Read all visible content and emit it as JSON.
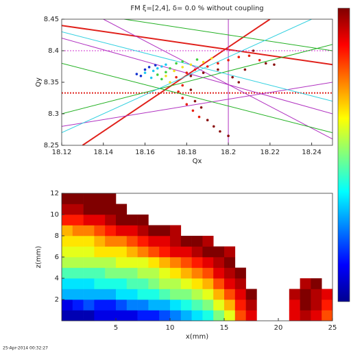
{
  "chart_data": [
    {
      "type": "scatter",
      "title": "FM ξ=[2,4], δ= 0.0 % without coupling",
      "xlabel": "Qx",
      "ylabel": "Qy",
      "xlim": [
        18.12,
        18.25
      ],
      "xticks": [
        18.12,
        18.14,
        18.16,
        18.18,
        18.2,
        18.22,
        18.24
      ],
      "ylim": [
        8.25,
        8.45
      ],
      "yticks": [
        8.25,
        8.3,
        8.35,
        8.4,
        8.45
      ],
      "lines": [
        {
          "color": "#e0201a",
          "dash": false,
          "x": [
            18.12,
            18.25
          ],
          "y": [
            8.44,
            8.378
          ]
        },
        {
          "color": "#e0201a",
          "dash": false,
          "x": [
            18.13,
            18.22
          ],
          "y": [
            8.25,
            8.45
          ]
        },
        {
          "color": "#e0201a",
          "dash": true,
          "x": [
            18.12,
            18.25
          ],
          "y": [
            8.333,
            8.333
          ]
        },
        {
          "color": "#d030d0",
          "dash": true,
          "x": [
            18.12,
            18.25
          ],
          "y": [
            8.4,
            8.4
          ]
        },
        {
          "color": "#b030c0",
          "dash": false,
          "x": [
            18.2,
            18.2
          ],
          "y": [
            8.25,
            8.45
          ]
        },
        {
          "color": "#b030c0",
          "dash": false,
          "x": [
            18.12,
            18.25
          ],
          "y": [
            8.28,
            8.35
          ]
        },
        {
          "color": "#b030c0",
          "dash": false,
          "x": [
            18.12,
            18.25
          ],
          "y": [
            8.42,
            8.3
          ]
        },
        {
          "color": "#b030c0",
          "dash": false,
          "x": [
            18.14,
            18.25
          ],
          "y": [
            8.45,
            8.26
          ]
        },
        {
          "color": "#20b020",
          "dash": false,
          "x": [
            18.12,
            18.25
          ],
          "y": [
            8.38,
            8.27
          ]
        },
        {
          "color": "#20b020",
          "dash": false,
          "x": [
            18.12,
            18.25
          ],
          "y": [
            8.3,
            8.41
          ]
        },
        {
          "color": "#20b020",
          "dash": false,
          "x": [
            18.15,
            18.25
          ],
          "y": [
            8.45,
            8.4
          ]
        },
        {
          "color": "#30d0e0",
          "dash": false,
          "x": [
            18.12,
            18.25
          ],
          "y": [
            8.43,
            8.32
          ]
        },
        {
          "color": "#30d0e0",
          "dash": false,
          "x": [
            18.12,
            18.24
          ],
          "y": [
            8.27,
            8.45
          ]
        }
      ],
      "groups": [
        {
          "color": "#1030d0",
          "x": [
            18.156,
            18.158,
            18.16,
            18.162,
            18.165
          ],
          "y": [
            8.363,
            8.36,
            8.37,
            8.374,
            8.377
          ]
        },
        {
          "color": "#20c8f0",
          "x": [
            18.16,
            18.164,
            18.166,
            18.168,
            18.17,
            18.163
          ],
          "y": [
            8.365,
            8.368,
            8.372,
            8.375,
            8.378,
            8.357
          ]
        },
        {
          "color": "#40d040",
          "x": [
            18.166,
            18.17,
            18.172,
            18.175,
            18.178,
            18.168,
            18.185
          ],
          "y": [
            8.362,
            8.366,
            8.372,
            8.38,
            8.383,
            8.355,
            8.386
          ]
        },
        {
          "color": "#f0e020",
          "x": [
            18.17,
            18.174,
            18.178,
            18.182,
            18.188,
            18.172,
            18.192
          ],
          "y": [
            8.36,
            8.368,
            8.374,
            8.378,
            8.382,
            8.35,
            8.388
          ]
        },
        {
          "color": "#e82010",
          "x": [
            18.175,
            18.18,
            18.184,
            18.19,
            18.195,
            18.178,
            18.176,
            18.178,
            18.18,
            18.183,
            18.186,
            18.2,
            18.205,
            18.21,
            18.215
          ],
          "y": [
            8.358,
            8.365,
            8.37,
            8.375,
            8.38,
            8.345,
            8.335,
            8.325,
            8.315,
            8.305,
            8.295,
            8.385,
            8.39,
            8.392,
            8.385
          ]
        },
        {
          "color": "#8a1010",
          "x": [
            18.182,
            18.188,
            18.195,
            18.182,
            18.184,
            18.187,
            18.19,
            18.193,
            18.196,
            18.2,
            18.202,
            18.208,
            18.212,
            18.218,
            18.222,
            18.205
          ],
          "y": [
            8.36,
            8.365,
            8.37,
            8.338,
            8.32,
            8.31,
            8.29,
            8.28,
            8.272,
            8.265,
            8.358,
            8.37,
            8.4,
            8.38,
            8.378,
            8.35
          ]
        }
      ]
    },
    {
      "type": "heatmap",
      "xlabel": "x(mm)",
      "ylabel": "z(mm)",
      "xlim": [
        0,
        25
      ],
      "xticks": [
        5,
        10,
        15,
        20,
        25
      ],
      "ylim": [
        0,
        12
      ],
      "yticks": [
        2,
        4,
        6,
        8,
        10,
        12
      ],
      "clim": [
        0,
        1
      ],
      "xbins": [
        0,
        1,
        2,
        3,
        4,
        5,
        6,
        7,
        8,
        9,
        10,
        11,
        12,
        13,
        14,
        15,
        16,
        17,
        18,
        19,
        20,
        21,
        22,
        23,
        24,
        25
      ],
      "ybins": [
        0,
        1,
        2,
        3,
        4,
        5,
        6,
        7,
        8,
        9,
        10,
        11,
        12
      ],
      "values": [
        [
          0.05,
          0.05,
          0.05,
          0.1,
          0.1,
          0.1,
          0.1,
          0.15,
          0.15,
          0.2,
          0.25,
          0.3,
          0.35,
          0.4,
          0.5,
          0.6,
          0.8,
          0.9,
          null,
          null,
          null,
          0.9,
          0.95,
          0.9,
          0.8
        ],
        [
          0.1,
          0.15,
          0.2,
          0.15,
          0.15,
          0.2,
          0.25,
          0.25,
          0.3,
          0.3,
          0.35,
          0.4,
          0.45,
          0.5,
          0.6,
          0.7,
          0.85,
          0.95,
          null,
          null,
          null,
          0.9,
          1,
          0.95,
          0.85
        ],
        [
          0.3,
          0.3,
          0.3,
          0.3,
          0.3,
          0.35,
          0.35,
          0.4,
          0.4,
          0.45,
          0.5,
          0.5,
          0.55,
          0.6,
          0.7,
          0.8,
          0.9,
          1,
          null,
          null,
          null,
          0.95,
          1,
          0.95,
          0.9
        ],
        [
          0.35,
          0.35,
          0.35,
          0.4,
          0.4,
          0.4,
          0.45,
          0.45,
          0.5,
          0.55,
          0.55,
          0.6,
          0.65,
          0.7,
          0.8,
          0.9,
          0.95,
          null,
          null,
          null,
          null,
          null,
          0.95,
          1,
          null
        ],
        [
          0.45,
          0.45,
          0.45,
          0.45,
          0.5,
          0.5,
          0.5,
          0.55,
          0.55,
          0.6,
          0.65,
          0.7,
          0.75,
          0.8,
          0.9,
          0.95,
          1,
          null,
          null,
          null,
          null,
          null,
          null,
          null,
          null
        ],
        [
          0.55,
          0.55,
          0.55,
          0.55,
          0.55,
          0.6,
          0.6,
          0.6,
          0.65,
          0.7,
          0.75,
          0.8,
          0.85,
          0.9,
          0.95,
          1,
          null,
          null,
          null,
          null,
          null,
          null,
          null,
          null,
          null
        ],
        [
          0.6,
          0.6,
          0.6,
          0.65,
          0.65,
          0.65,
          0.7,
          0.75,
          0.8,
          0.85,
          0.9,
          0.9,
          0.95,
          1,
          1,
          0.95,
          null,
          null,
          null,
          null,
          null,
          null,
          null,
          null,
          null
        ],
        [
          0.65,
          0.65,
          0.65,
          0.7,
          0.75,
          0.75,
          0.8,
          0.85,
          0.9,
          0.9,
          0.95,
          1,
          1,
          0.95,
          null,
          null,
          null,
          null,
          null,
          null,
          null,
          null,
          null,
          null,
          null
        ],
        [
          0.7,
          0.75,
          0.75,
          0.8,
          0.85,
          0.9,
          0.9,
          0.95,
          1,
          1,
          0.95,
          null,
          null,
          null,
          null,
          null,
          null,
          null,
          null,
          null,
          null,
          null,
          null,
          null,
          null
        ],
        [
          0.85,
          0.85,
          0.9,
          0.9,
          0.95,
          1,
          1,
          1,
          null,
          null,
          null,
          null,
          null,
          null,
          null,
          null,
          null,
          null,
          null,
          null,
          null,
          null,
          null,
          null,
          null
        ],
        [
          0.95,
          0.95,
          1,
          1,
          1,
          1,
          null,
          null,
          null,
          null,
          null,
          null,
          null,
          null,
          null,
          null,
          null,
          null,
          null,
          null,
          null,
          null,
          null,
          null,
          null
        ],
        [
          1,
          1,
          1,
          1,
          1,
          null,
          null,
          null,
          null,
          null,
          null,
          null,
          null,
          null,
          null,
          null,
          null,
          null,
          null,
          null,
          null,
          null,
          null,
          null,
          null
        ]
      ]
    }
  ],
  "footer": "25-Apr-2014 00:32:27"
}
